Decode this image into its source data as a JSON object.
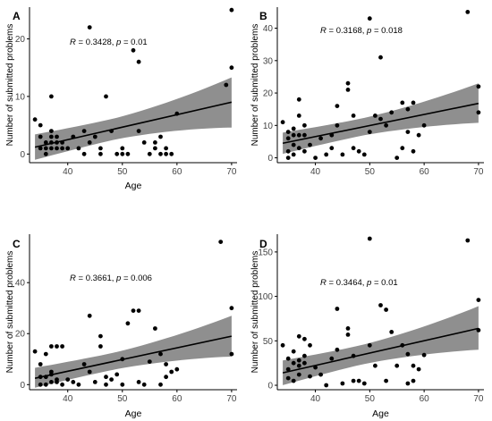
{
  "colors": {
    "band": "#8f8f8f",
    "line": "#000000",
    "point": "#000000",
    "axis": "#000000"
  },
  "chart_data": [
    {
      "type": "scatter",
      "panel_label": "A",
      "xlabel": "Age",
      "ylabel": "Number of submitted problems",
      "xlim": [
        33,
        71
      ],
      "ylim": [
        -1.5,
        25.5
      ],
      "xticks": [
        40,
        50,
        60,
        70
      ],
      "yticks": [
        0,
        10,
        20
      ],
      "annotation": {
        "r_label": "R",
        "r_value": " = 0.3428, ",
        "p_label": "p",
        "p_value": " = 0.01"
      },
      "fit": {
        "x": [
          34,
          70
        ],
        "y": [
          1.2,
          9.0
        ],
        "ci_lower": [
          -1.5,
          4.6
        ],
        "ci_upper": [
          3.9,
          13.3
        ]
      },
      "x": [
        34,
        35,
        35,
        35,
        36,
        36,
        36,
        37,
        37,
        37,
        37,
        37,
        38,
        38,
        38,
        39,
        39,
        40,
        41,
        42,
        43,
        43,
        44,
        44,
        45,
        46,
        46,
        47,
        48,
        49,
        50,
        50,
        51,
        52,
        53,
        53,
        54,
        55,
        56,
        56,
        57,
        57,
        58,
        58,
        59,
        60,
        69,
        70,
        70
      ],
      "y": [
        6,
        5,
        1,
        3,
        2,
        0,
        1,
        4,
        3,
        1,
        2,
        10,
        3,
        2,
        1,
        1,
        2,
        1,
        3,
        1,
        0,
        4,
        2,
        22,
        3,
        0,
        1,
        10,
        4,
        0,
        0,
        1,
        0,
        18,
        16,
        4,
        2,
        0,
        1,
        2,
        0,
        3,
        0,
        1,
        0,
        7,
        12,
        15,
        25
      ]
    },
    {
      "type": "scatter",
      "panel_label": "B",
      "xlabel": "",
      "ylabel": "Number of submitted problems",
      "xlim": [
        33,
        71
      ],
      "ylim": [
        -1.5,
        46.5
      ],
      "xticks": [
        40,
        50,
        60,
        70
      ],
      "yticks": [
        0,
        10,
        20,
        30,
        40
      ],
      "annotation": {
        "r_label": "R",
        "r_value": " = 0.3168, ",
        "p_label": "p",
        "p_value": " = 0.018"
      },
      "fit": {
        "x": [
          34,
          70
        ],
        "y": [
          4.5,
          16.8
        ],
        "ci_lower": [
          0.5,
          10.8
        ],
        "ci_upper": [
          8.5,
          23.0
        ]
      },
      "x": [
        34,
        35,
        35,
        35,
        35,
        36,
        36,
        36,
        36,
        37,
        37,
        37,
        37,
        38,
        38,
        38,
        39,
        40,
        41,
        42,
        43,
        43,
        44,
        44,
        45,
        46,
        46,
        47,
        47,
        48,
        49,
        50,
        50,
        51,
        52,
        52,
        53,
        54,
        55,
        56,
        56,
        57,
        57,
        58,
        58,
        59,
        60,
        68,
        70,
        70
      ],
      "y": [
        11,
        8,
        6,
        2,
        0,
        7,
        4,
        1,
        9,
        13,
        18,
        3,
        7,
        10,
        2,
        7,
        4,
        0,
        6,
        1,
        3,
        7,
        16,
        10,
        1,
        23,
        21,
        13,
        3,
        2,
        1,
        43,
        8,
        13,
        31,
        12,
        10,
        14,
        0,
        17,
        3,
        15,
        8,
        17,
        2,
        7,
        10,
        45,
        14,
        22
      ]
    },
    {
      "type": "scatter",
      "panel_label": "C",
      "xlabel": "Age",
      "ylabel": "Number of submitted problems",
      "xlim": [
        33,
        71
      ],
      "ylim": [
        -2,
        59
      ],
      "xticks": [
        40,
        50,
        60,
        70
      ],
      "yticks": [
        0,
        20,
        40
      ],
      "annotation": {
        "r_label": "R",
        "r_value": " = 0.3661, ",
        "p_label": "p",
        "p_value": " = 0.006"
      },
      "fit": {
        "x": [
          34,
          70
        ],
        "y": [
          2.5,
          19.0
        ],
        "ci_lower": [
          -2.0,
          11.0
        ],
        "ci_upper": [
          7.5,
          27.0
        ]
      },
      "x": [
        34,
        35,
        35,
        35,
        36,
        36,
        36,
        37,
        37,
        37,
        37,
        38,
        38,
        38,
        39,
        39,
        40,
        41,
        42,
        43,
        44,
        44,
        45,
        46,
        46,
        47,
        47,
        48,
        49,
        50,
        50,
        51,
        52,
        53,
        53,
        54,
        55,
        56,
        57,
        57,
        58,
        58,
        59,
        60,
        68,
        70,
        70
      ],
      "y": [
        13,
        3,
        0,
        8,
        0,
        3,
        12,
        15,
        5,
        1,
        4,
        15,
        2,
        1,
        15,
        0,
        2,
        1,
        0,
        8,
        27,
        5,
        1,
        19,
        15,
        0,
        3,
        2,
        4,
        10,
        0,
        24,
        29,
        29,
        1,
        0,
        9,
        22,
        12,
        0,
        8,
        3,
        5,
        6,
        56,
        30,
        12
      ]
    },
    {
      "type": "scatter",
      "panel_label": "D",
      "xlabel": "Age",
      "ylabel": "Number of submitted problems",
      "xlim": [
        33,
        71
      ],
      "ylim": [
        -5,
        170
      ],
      "xticks": [
        40,
        50,
        60,
        70
      ],
      "yticks": [
        0,
        50,
        100,
        150
      ],
      "annotation": {
        "r_label": "R",
        "r_value": " = 0.3464, ",
        "p_label": "p",
        "p_value": " = 0.01"
      },
      "fit": {
        "x": [
          34,
          70
        ],
        "y": [
          14,
          64
        ],
        "ci_lower": [
          -3,
          40
        ],
        "ci_upper": [
          31,
          89
        ]
      },
      "x": [
        34,
        35,
        35,
        35,
        36,
        36,
        36,
        37,
        37,
        37,
        37,
        38,
        38,
        38,
        39,
        39,
        40,
        41,
        42,
        43,
        44,
        44,
        45,
        46,
        46,
        47,
        47,
        48,
        49,
        50,
        50,
        51,
        52,
        53,
        53,
        54,
        55,
        56,
        57,
        57,
        58,
        58,
        59,
        60,
        68,
        70,
        70
      ],
      "y": [
        45,
        30,
        8,
        18,
        38,
        25,
        5,
        55,
        22,
        12,
        28,
        52,
        33,
        25,
        10,
        45,
        20,
        12,
        0,
        30,
        86,
        40,
        2,
        64,
        57,
        5,
        33,
        5,
        2,
        165,
        45,
        22,
        90,
        85,
        5,
        60,
        22,
        45,
        2,
        35,
        5,
        22,
        18,
        34,
        163,
        96,
        62
      ]
    }
  ]
}
